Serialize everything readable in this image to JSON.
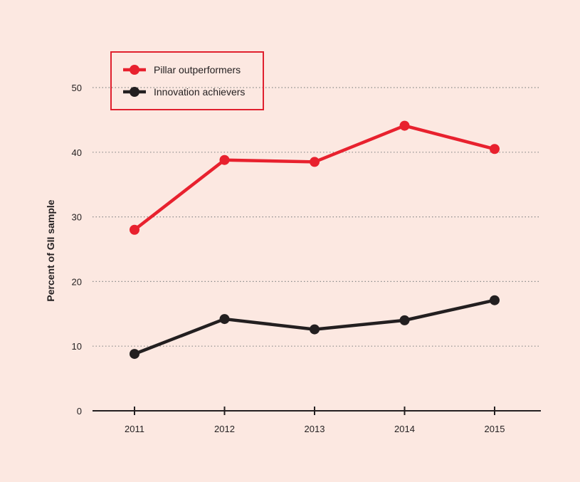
{
  "colors": {
    "background": "#fce8e1",
    "gridline": "#8a8a8a",
    "axis": "#231f20",
    "legend_border": "#e0202e"
  },
  "chart_data": {
    "type": "line",
    "title": "",
    "xlabel": "",
    "ylabel": "Percent of GII sample",
    "x": [
      "2011",
      "2012",
      "2013",
      "2014",
      "2015"
    ],
    "ylim": [
      0,
      50
    ],
    "yticks": [
      0,
      10,
      20,
      30,
      40,
      50
    ],
    "grid": "horizontal dotted",
    "legend_position": "top-left",
    "series": [
      {
        "name": "Pillar outperformers",
        "color": "#e8212e",
        "values": [
          28.0,
          38.8,
          38.5,
          44.1,
          40.5
        ]
      },
      {
        "name": "Innovation achievers",
        "color": "#231f20",
        "values": [
          8.8,
          14.2,
          12.6,
          14.0,
          17.1
        ]
      }
    ]
  }
}
